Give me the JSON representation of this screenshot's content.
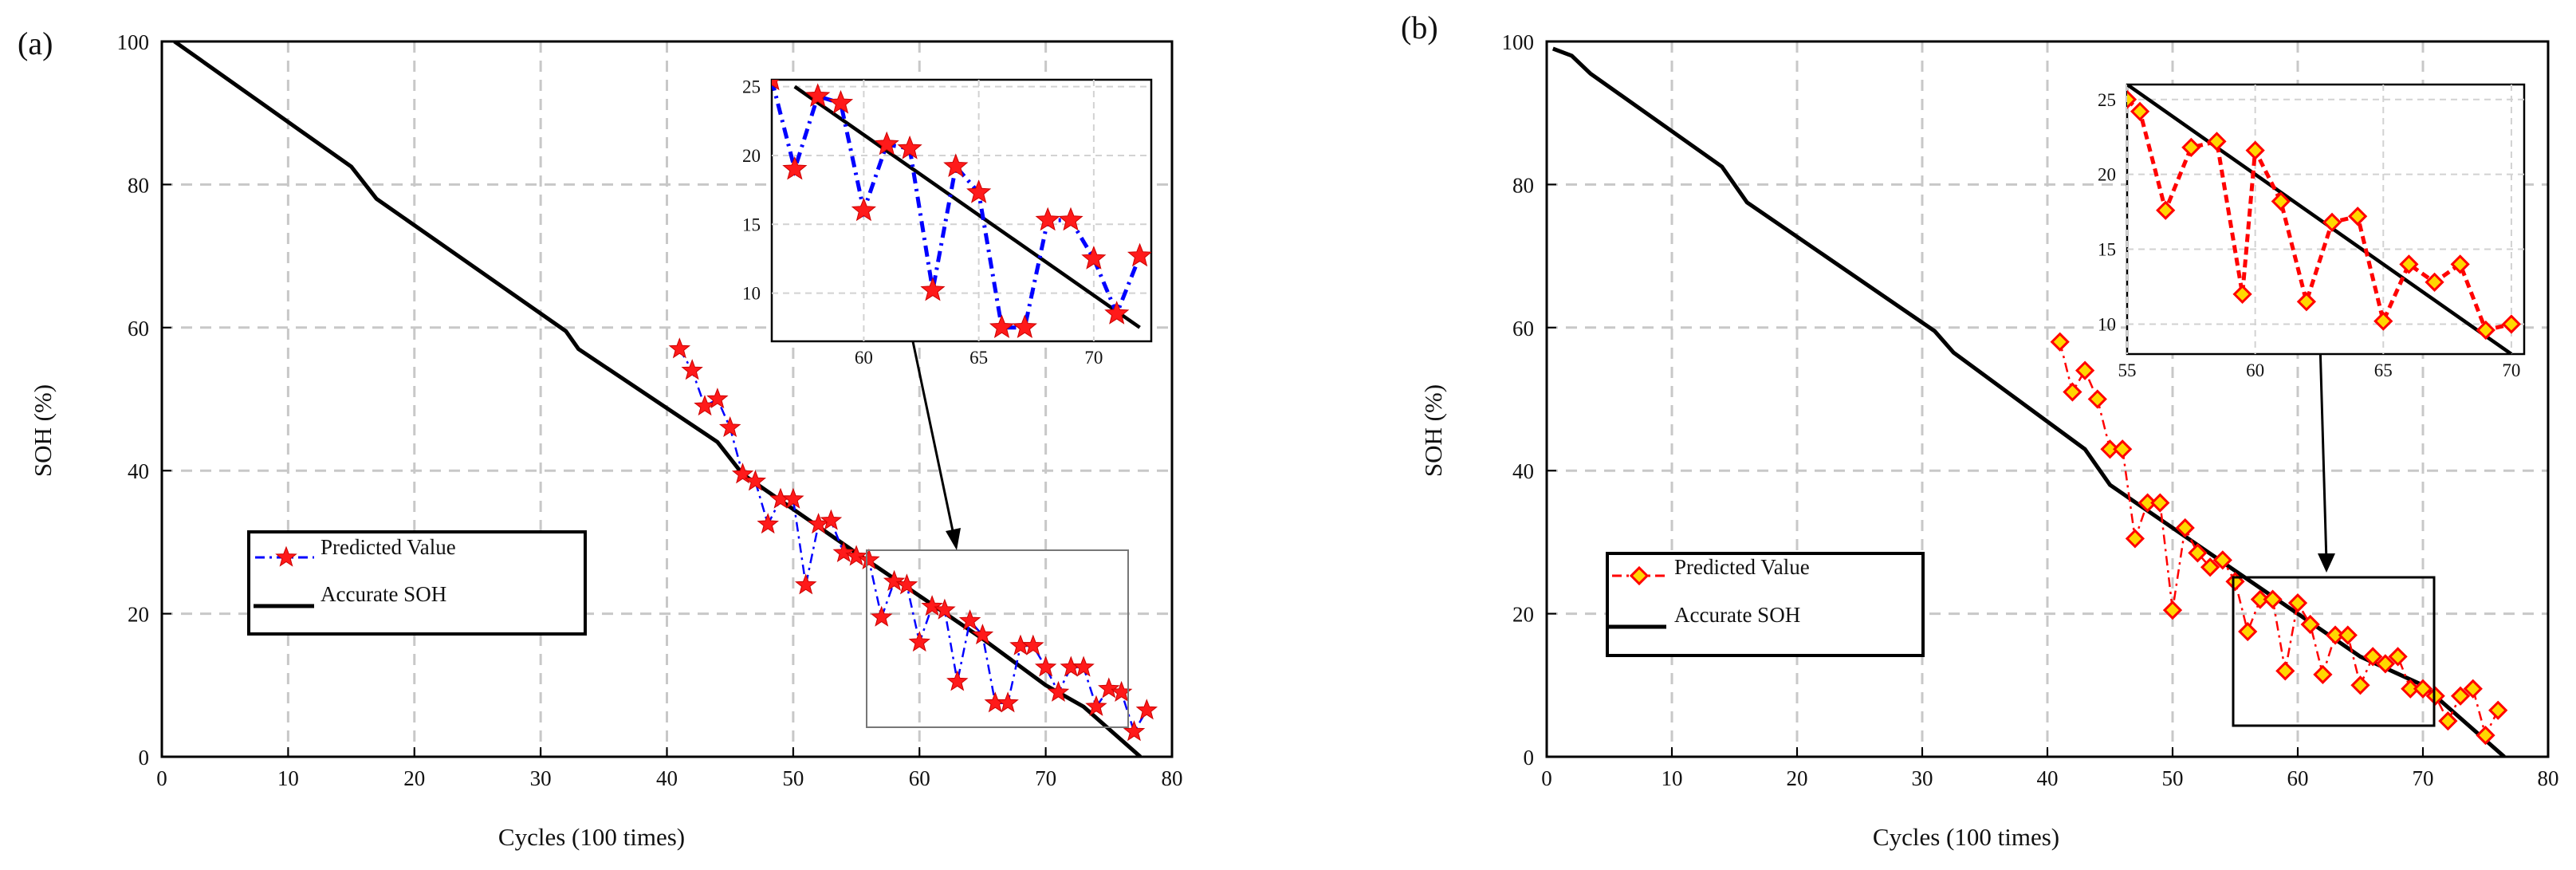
{
  "chart_data": [
    {
      "panel": "(a)",
      "type": "line",
      "xlabel": "Cycles (100 times)",
      "ylabel": "SOH (%)",
      "xlim": [
        0,
        80
      ],
      "ylim": [
        0,
        100
      ],
      "xticks": [
        0,
        10,
        20,
        30,
        40,
        50,
        60,
        70,
        80
      ],
      "yticks": [
        0,
        20,
        40,
        60,
        80,
        100
      ],
      "grid": true,
      "legend": {
        "placement": "lower-left",
        "entries": [
          "Predicted Value",
          "Accurate SOH"
        ]
      },
      "series": [
        {
          "name": "Accurate SOH",
          "color": "#000000",
          "style": "solid",
          "x": [
            1,
            15,
            17,
            32,
            33,
            44,
            46,
            55,
            65,
            70,
            73,
            77.5
          ],
          "y": [
            100,
            82.5,
            78,
            59.5,
            57,
            44,
            39.5,
            28.5,
            16.5,
            10,
            7,
            0
          ]
        },
        {
          "name": "Predicted Value",
          "color": "#0000ff",
          "marker_color": "#ff1a1a",
          "marker": "star",
          "style": "dash-dot",
          "x": [
            41,
            42,
            43,
            44,
            45,
            46,
            47,
            48,
            49,
            50,
            51,
            52,
            53,
            54,
            55,
            56,
            57,
            58,
            59,
            60,
            61,
            62,
            63,
            64,
            65,
            66,
            67,
            68,
            69,
            70,
            71,
            72,
            73,
            74,
            75,
            76,
            77,
            78
          ],
          "y": [
            57,
            54,
            49,
            50,
            46,
            39.5,
            38.5,
            32.5,
            36,
            36,
            24,
            32.5,
            33,
            28.5,
            28,
            27.5,
            19.5,
            24.5,
            24,
            16,
            21,
            20.5,
            10.5,
            19,
            17,
            7.5,
            7.5,
            15.5,
            15.5,
            12.5,
            9,
            12.5,
            12.5,
            7,
            9.5,
            9,
            3.5,
            6.5
          ]
        }
      ],
      "inset": {
        "xlim": [
          56,
          72.5
        ],
        "ylim": [
          6.5,
          25.5
        ],
        "xticks": [
          60,
          65,
          70
        ],
        "yticks": [
          10,
          15,
          20,
          25
        ],
        "x": [
          56,
          57,
          58,
          59,
          60,
          61,
          62,
          63,
          64,
          65,
          66,
          67,
          68,
          69,
          70,
          71,
          72
        ],
        "y": [
          25.5,
          19,
          24.3,
          23.8,
          16,
          20.8,
          20.5,
          10.2,
          19.2,
          17.3,
          7.5,
          7.5,
          15.3,
          15.3,
          12.5,
          8.5,
          12.7
        ],
        "truth_x": [
          57,
          72
        ],
        "truth_y": [
          25,
          7.5
        ]
      }
    },
    {
      "panel": "(b)",
      "type": "line",
      "xlabel": "Cycles (100 times)",
      "ylabel": "SOH (%)",
      "xlim": [
        0,
        80
      ],
      "ylim": [
        0,
        100
      ],
      "xticks": [
        0,
        10,
        20,
        30,
        40,
        50,
        60,
        70,
        80
      ],
      "yticks": [
        0,
        20,
        40,
        60,
        80,
        100
      ],
      "grid": true,
      "legend": {
        "placement": "lower-left",
        "entries": [
          "Predicted Value",
          "Accurate SOH"
        ]
      },
      "series": [
        {
          "name": "Accurate SOH",
          "color": "#000000",
          "style": "solid",
          "x": [
            0.5,
            2,
            3.5,
            14,
            16,
            31,
            32.5,
            43,
            45,
            55,
            65,
            70,
            76.5
          ],
          "y": [
            99,
            98,
            95.5,
            82.5,
            77.5,
            59.5,
            56.5,
            43,
            38,
            26,
            14,
            10,
            0
          ]
        },
        {
          "name": "Predicted Value",
          "color": "#ff0000",
          "marker_color": "#ffd700",
          "marker": "diamond",
          "style": "dash-dot",
          "x": [
            41,
            42,
            43,
            44,
            45,
            46,
            47,
            48,
            49,
            50,
            51,
            52,
            53,
            54,
            55,
            56,
            57,
            58,
            59,
            60,
            61,
            62,
            63,
            64,
            65,
            66,
            67,
            68,
            69,
            70,
            71,
            72,
            73,
            74,
            75,
            76
          ],
          "y": [
            58,
            51,
            54,
            50,
            43,
            43,
            30.5,
            35.5,
            35.5,
            20.5,
            32,
            28.5,
            26.5,
            27.5,
            24.5,
            17.5,
            22,
            22,
            12,
            21.5,
            18.5,
            11.5,
            17,
            17,
            10,
            14,
            13,
            14,
            9.5,
            9.5,
            8.5,
            5,
            8.5,
            9.5,
            3,
            6.5
          ]
        }
      ],
      "inset": {
        "xlim": [
          55,
          70.5
        ],
        "ylim": [
          8,
          26
        ],
        "xticks": [
          55,
          60,
          65,
          70
        ],
        "yticks": [
          10,
          15,
          20,
          25
        ],
        "x": [
          55,
          55.5,
          56.5,
          57.5,
          58.5,
          59.5,
          60,
          61,
          62,
          63,
          64,
          65,
          66,
          67,
          68,
          69,
          70
        ],
        "y": [
          25,
          24.2,
          17.6,
          21.8,
          22.2,
          12,
          21.6,
          18.2,
          11.5,
          16.8,
          17.2,
          10.2,
          14,
          12.8,
          14,
          9.6,
          10
        ],
        "truth_x": [
          55,
          70
        ],
        "truth_y": [
          26,
          8
        ]
      }
    }
  ]
}
